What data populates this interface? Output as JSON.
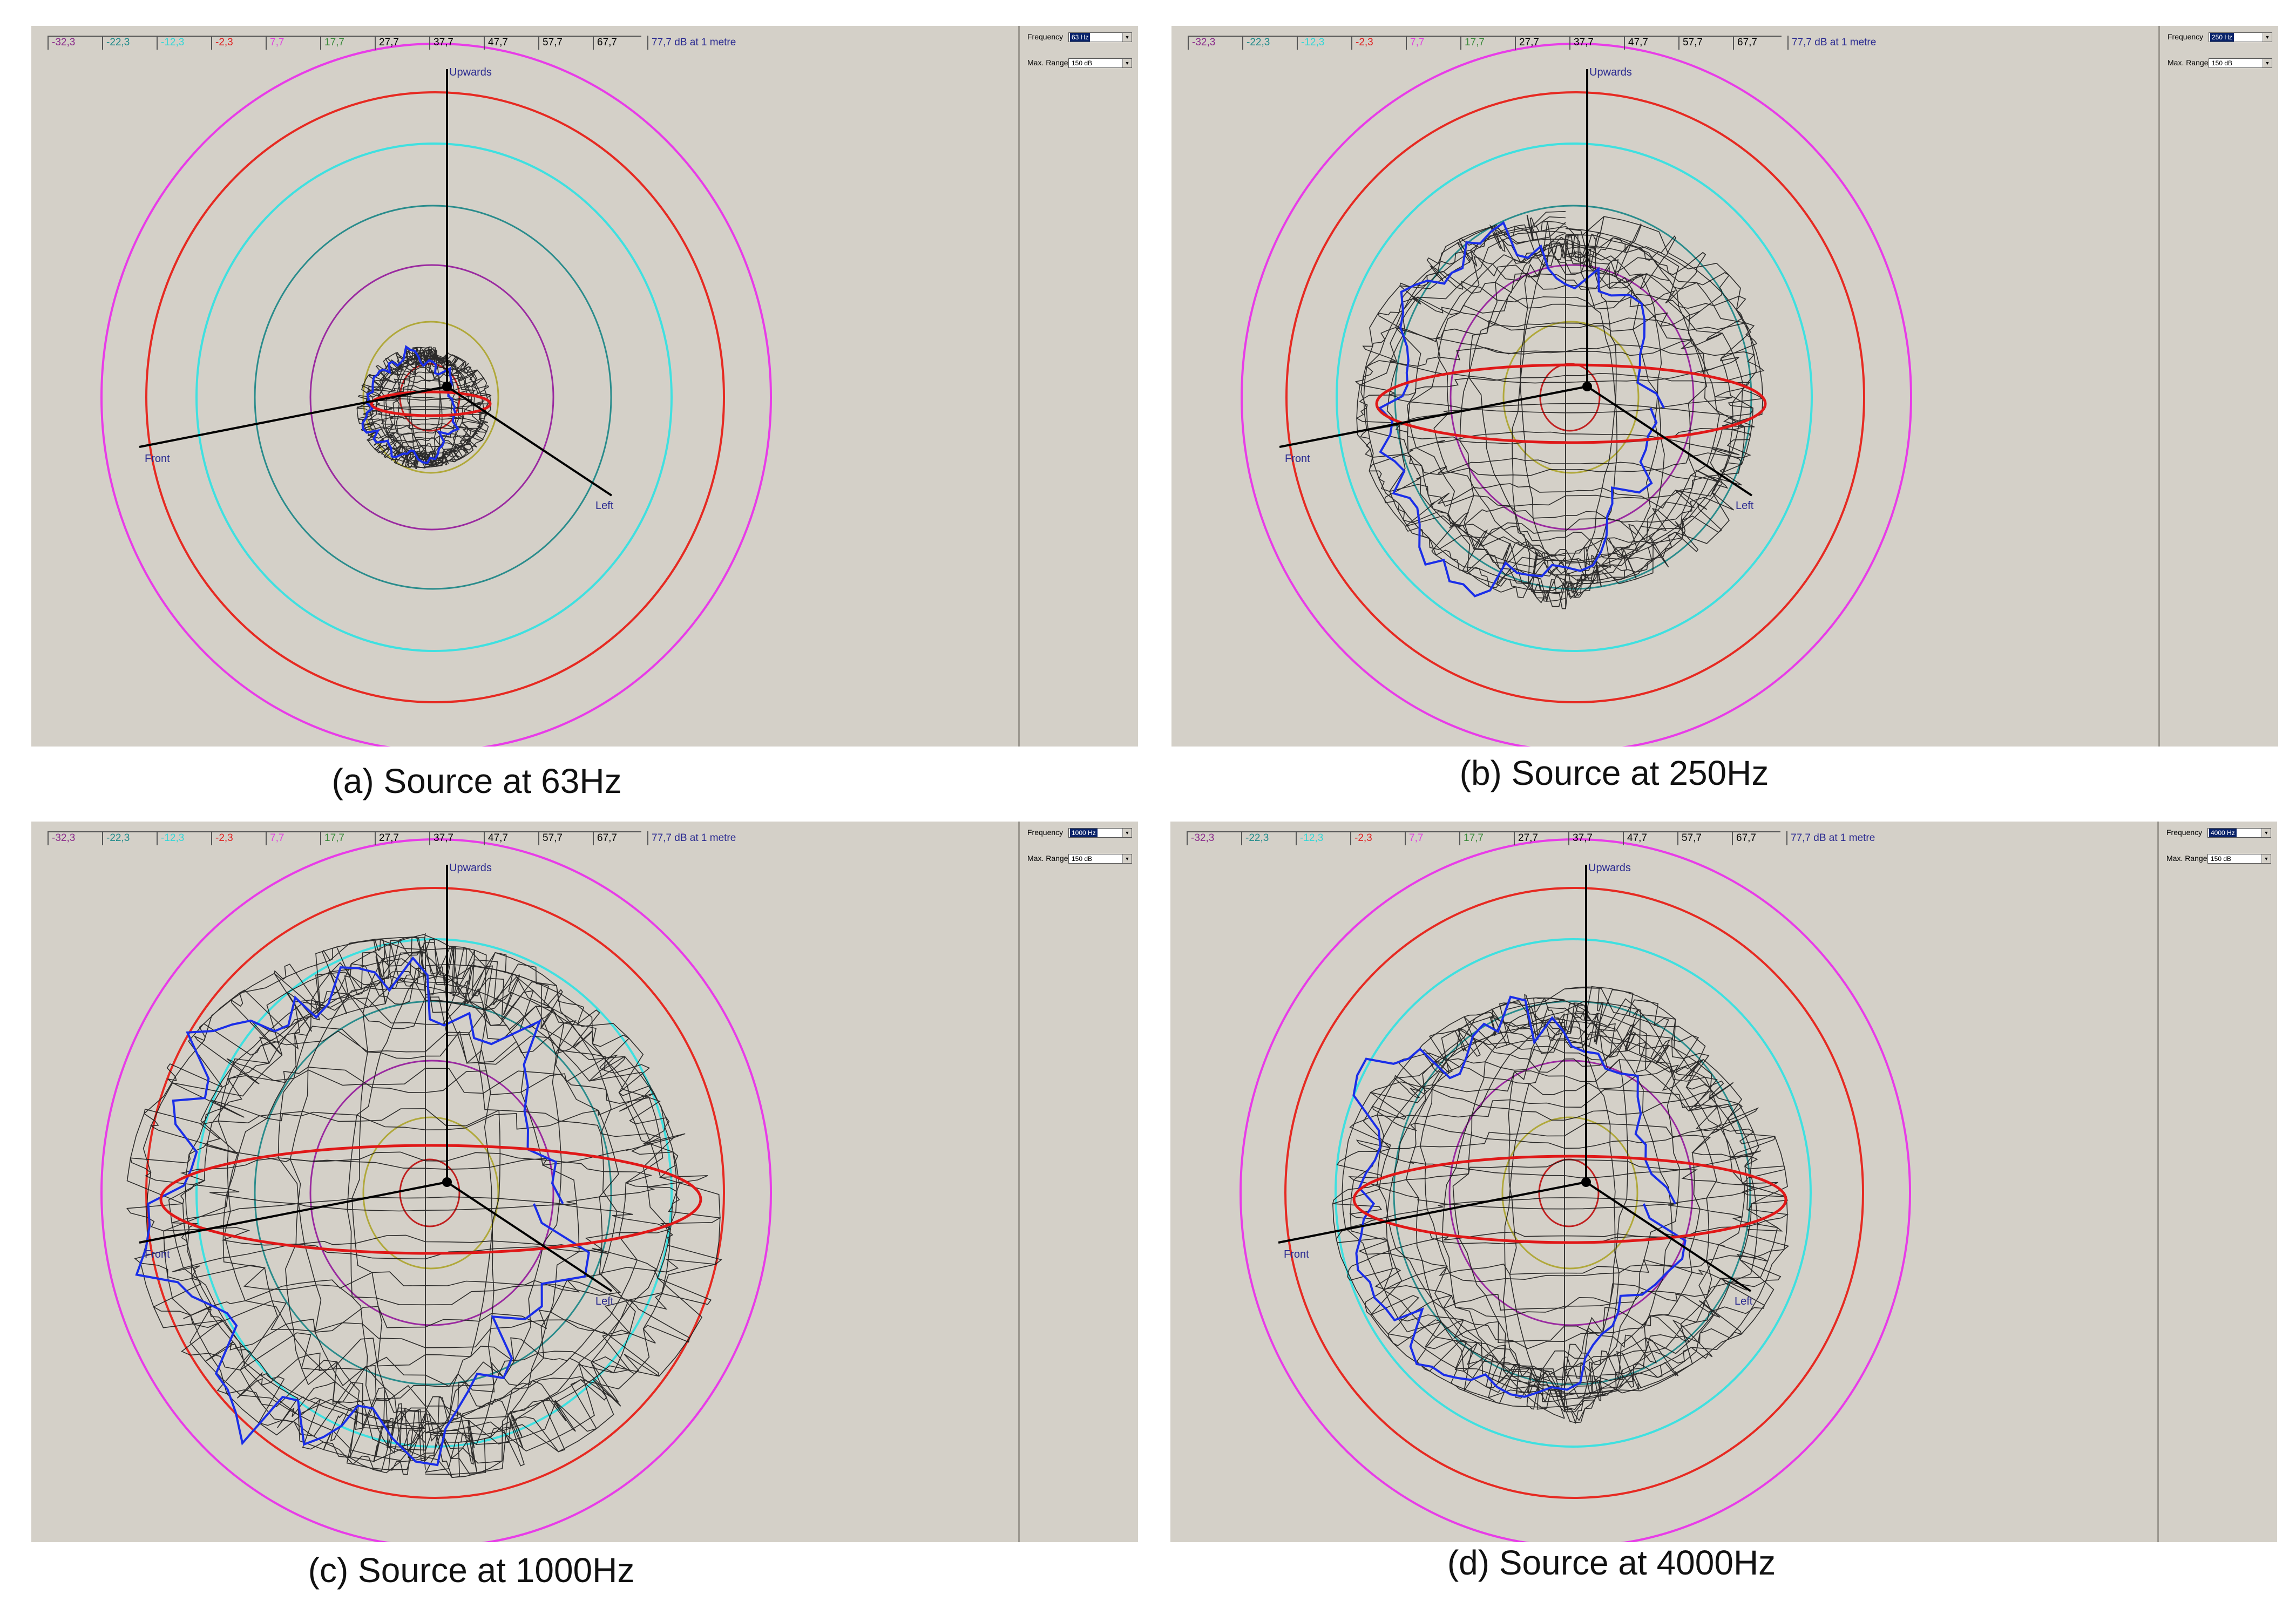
{
  "legend": {
    "entries": [
      {
        "label": "-32,3",
        "color": "#8a2a8a"
      },
      {
        "label": "-22,3",
        "color": "#1f8a8a"
      },
      {
        "label": "-12,3",
        "color": "#33d6d6"
      },
      {
        "label": "-2,3",
        "color": "#e02020"
      },
      {
        "label": "7,7",
        "color": "#e040e0"
      },
      {
        "label": "17,7",
        "color": "#3a8a3a"
      },
      {
        "label": "27,7",
        "color": "#000000"
      },
      {
        "label": "37,7",
        "color": "#000000"
      },
      {
        "label": "47,7",
        "color": "#000000"
      },
      {
        "label": "57,7",
        "color": "#000000"
      },
      {
        "label": "67,7",
        "color": "#000000"
      }
    ],
    "unit_label": "77,7 dB at 1 metre"
  },
  "controls": {
    "frequency_label": "Frequency",
    "max_range_label": "Max. Range",
    "max_range_value": "150 dB"
  },
  "axes": {
    "up": "Upwards",
    "front": "Front",
    "left": "Left"
  },
  "colors": {
    "ring_magenta": "#e83ce8",
    "ring_red": "#e62a22",
    "ring_cyan": "#3fe0e0",
    "ring_teal": "#2a8c8c",
    "ring_purple": "#9a2aa0",
    "ring_olive": "#b0a83a",
    "ring_inner_red": "#c02020",
    "mesh": "#1a1a1a",
    "trace_blue": "#1a2ee8",
    "trace_red": "#e01818",
    "panel_bg": "#d4d0c8"
  },
  "panels": [
    {
      "id": "a",
      "frequency": "63 Hz",
      "caption": "(a) Source at 63Hz"
    },
    {
      "id": "b",
      "frequency": "250 Hz",
      "caption": "(b) Source at 250Hz"
    },
    {
      "id": "c",
      "frequency": "1000 Hz",
      "caption": "(c) Source at 1000Hz"
    },
    {
      "id": "d",
      "frequency": "4000 Hz",
      "caption": "(d) Source at 4000Hz"
    }
  ]
}
